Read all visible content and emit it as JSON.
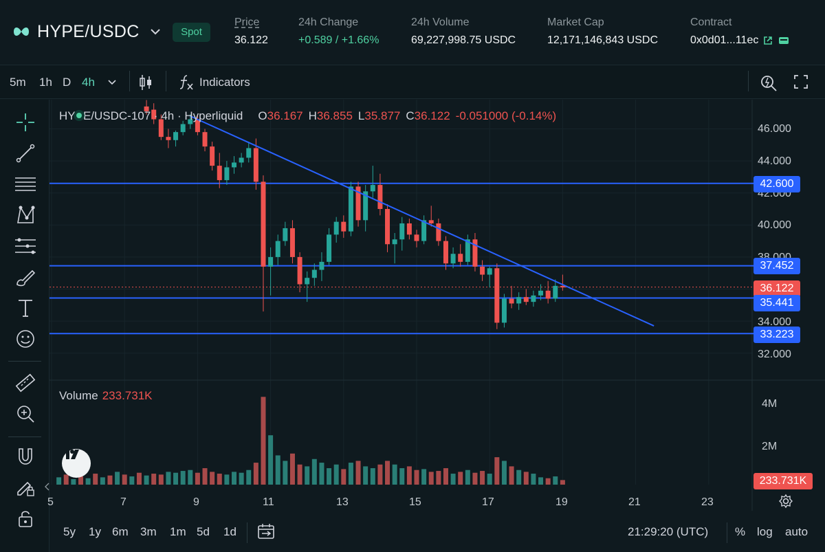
{
  "header": {
    "pair": "HYPE/USDC",
    "market_type": "Spot",
    "stats": [
      {
        "key": "price",
        "label": "Price",
        "value": "36.122"
      },
      {
        "key": "change",
        "label": "24h Change",
        "value": "+0.589 / +1.66%"
      },
      {
        "key": "volume",
        "label": "24h Volume",
        "value": "69,227,998.75 USDC"
      },
      {
        "key": "mcap",
        "label": "Market Cap",
        "value": "12,171,146,843 USDC"
      },
      {
        "key": "contract",
        "label": "Contract",
        "value": "0x0d01...11ec"
      }
    ],
    "accent": "#4fd1a1"
  },
  "toolbar": {
    "timeframes": [
      "5m",
      "1h",
      "D",
      "4h"
    ],
    "active_timeframe": "4h",
    "indicators_label": "Indicators"
  },
  "sidebar_tools": [
    "crosshair-icon",
    "trend-line-icon",
    "horizontal-lines-icon",
    "pattern-icon",
    "fib-icon",
    "brush-icon",
    "text-icon",
    "emoji-icon",
    "ruler-icon",
    "zoom-in-icon",
    "magnet-icon",
    "lock-pen-icon",
    "lock-icon"
  ],
  "legend": {
    "title": "HYPE/USDC-107 · 4h · Hyperliquid",
    "o_label": "O",
    "o": "36.167",
    "h_label": "H",
    "h": "36.855",
    "l_label": "L",
    "l": "35.877",
    "c_label": "C",
    "c": "36.122",
    "change": "-0.051000 (-0.14%)"
  },
  "volume_legend": {
    "label": "Volume",
    "value": "233.731K"
  },
  "y_axis": {
    "ticks": [
      "46.000",
      "44.000",
      "42.000",
      "40.000",
      "38.000",
      "34.000",
      "32.000"
    ],
    "volume_ticks": [
      "4M",
      "2M"
    ]
  },
  "price_tags": {
    "level_1": "42.600",
    "level_2": "37.452",
    "last": "36.122",
    "level_3": "35.441",
    "level_4": "33.223",
    "volume": "233.731K"
  },
  "x_axis": {
    "ticks": [
      "5",
      "7",
      "9",
      "11",
      "13",
      "15",
      "17",
      "19",
      "21",
      "23"
    ]
  },
  "bottom_bar": {
    "ranges": [
      "5y",
      "1y",
      "6m",
      "3m",
      "1m",
      "5d",
      "1d"
    ],
    "clock": "21:29:20 (UTC)",
    "percent": "%",
    "log": "log",
    "auto": "auto"
  },
  "colors": {
    "up": "#26a69a",
    "down": "#ef5350",
    "level": "#2962ff",
    "bg": "#0f1a1f"
  },
  "chart_data": {
    "type": "candlestick",
    "y_range": [
      31.3,
      47.2
    ],
    "horizontal_levels": [
      42.6,
      37.452,
      35.441,
      33.223
    ],
    "last_price": 36.122,
    "trendline": [
      {
        "x": 8.8,
        "y": 46.8
      },
      {
        "x": 21.5,
        "y": 33.7
      }
    ],
    "candles": [
      {
        "x": 7.6,
        "o": 47.4,
        "h": 47.8,
        "l": 46.9,
        "c": 47.1
      },
      {
        "x": 7.8,
        "o": 47.2,
        "h": 47.6,
        "l": 46.3,
        "c": 46.6
      },
      {
        "x": 8.0,
        "o": 46.6,
        "h": 46.9,
        "l": 45.3,
        "c": 45.5
      },
      {
        "x": 8.2,
        "o": 45.5,
        "h": 46.0,
        "l": 44.8,
        "c": 45.3
      },
      {
        "x": 8.4,
        "o": 45.3,
        "h": 45.9,
        "l": 44.9,
        "c": 45.8
      },
      {
        "x": 8.6,
        "o": 45.8,
        "h": 46.5,
        "l": 45.6,
        "c": 46.3
      },
      {
        "x": 8.8,
        "o": 46.3,
        "h": 46.9,
        "l": 46.0,
        "c": 46.6
      },
      {
        "x": 9.0,
        "o": 46.6,
        "h": 46.9,
        "l": 45.6,
        "c": 45.8
      },
      {
        "x": 9.2,
        "o": 45.8,
        "h": 46.0,
        "l": 44.6,
        "c": 44.9
      },
      {
        "x": 9.4,
        "o": 44.9,
        "h": 45.2,
        "l": 43.4,
        "c": 43.7
      },
      {
        "x": 9.6,
        "o": 43.7,
        "h": 44.5,
        "l": 42.3,
        "c": 42.8
      },
      {
        "x": 9.8,
        "o": 42.8,
        "h": 44.0,
        "l": 42.5,
        "c": 43.6
      },
      {
        "x": 10.0,
        "o": 43.6,
        "h": 44.3,
        "l": 43.2,
        "c": 43.9
      },
      {
        "x": 10.2,
        "o": 43.9,
        "h": 44.5,
        "l": 43.6,
        "c": 44.2
      },
      {
        "x": 10.4,
        "o": 44.2,
        "h": 45.2,
        "l": 43.9,
        "c": 44.8
      },
      {
        "x": 10.6,
        "o": 44.8,
        "h": 45.4,
        "l": 42.2,
        "c": 42.7
      },
      {
        "x": 10.8,
        "o": 42.7,
        "h": 43.1,
        "l": 34.6,
        "c": 37.4
      },
      {
        "x": 11.0,
        "o": 37.4,
        "h": 38.6,
        "l": 35.6,
        "c": 38.0
      },
      {
        "x": 11.2,
        "o": 38.0,
        "h": 39.4,
        "l": 37.5,
        "c": 39.0
      },
      {
        "x": 11.4,
        "o": 39.0,
        "h": 40.2,
        "l": 38.7,
        "c": 39.8
      },
      {
        "x": 11.6,
        "o": 39.8,
        "h": 40.3,
        "l": 37.6,
        "c": 38.0
      },
      {
        "x": 11.8,
        "o": 38.0,
        "h": 38.3,
        "l": 35.8,
        "c": 36.3
      },
      {
        "x": 12.0,
        "o": 36.3,
        "h": 37.1,
        "l": 35.2,
        "c": 36.7
      },
      {
        "x": 12.2,
        "o": 36.7,
        "h": 37.6,
        "l": 36.2,
        "c": 37.2
      },
      {
        "x": 12.4,
        "o": 37.2,
        "h": 38.3,
        "l": 36.5,
        "c": 37.7
      },
      {
        "x": 12.6,
        "o": 37.7,
        "h": 39.8,
        "l": 37.5,
        "c": 39.4
      },
      {
        "x": 12.8,
        "o": 39.4,
        "h": 40.5,
        "l": 38.9,
        "c": 40.2
      },
      {
        "x": 13.0,
        "o": 40.2,
        "h": 40.6,
        "l": 39.2,
        "c": 39.6
      },
      {
        "x": 13.2,
        "o": 39.6,
        "h": 42.7,
        "l": 39.3,
        "c": 42.4
      },
      {
        "x": 13.4,
        "o": 42.4,
        "h": 42.7,
        "l": 39.9,
        "c": 40.3
      },
      {
        "x": 13.6,
        "o": 40.3,
        "h": 42.5,
        "l": 39.6,
        "c": 42.1
      },
      {
        "x": 13.8,
        "o": 42.1,
        "h": 43.7,
        "l": 41.7,
        "c": 42.5
      },
      {
        "x": 14.0,
        "o": 42.5,
        "h": 43.2,
        "l": 40.6,
        "c": 41.0
      },
      {
        "x": 14.2,
        "o": 41.0,
        "h": 41.3,
        "l": 38.3,
        "c": 38.8
      },
      {
        "x": 14.4,
        "o": 38.8,
        "h": 39.5,
        "l": 37.6,
        "c": 39.1
      },
      {
        "x": 14.6,
        "o": 39.1,
        "h": 40.5,
        "l": 38.4,
        "c": 40.1
      },
      {
        "x": 14.8,
        "o": 40.1,
        "h": 40.4,
        "l": 39.1,
        "c": 39.4
      },
      {
        "x": 15.0,
        "o": 39.4,
        "h": 39.7,
        "l": 38.6,
        "c": 39.0
      },
      {
        "x": 15.2,
        "o": 39.0,
        "h": 40.6,
        "l": 38.8,
        "c": 40.3
      },
      {
        "x": 15.4,
        "o": 40.3,
        "h": 41.2,
        "l": 39.9,
        "c": 40.1
      },
      {
        "x": 15.6,
        "o": 40.1,
        "h": 40.4,
        "l": 38.7,
        "c": 39.0
      },
      {
        "x": 15.8,
        "o": 39.0,
        "h": 39.3,
        "l": 37.2,
        "c": 37.6
      },
      {
        "x": 16.0,
        "o": 37.6,
        "h": 38.6,
        "l": 37.3,
        "c": 38.2
      },
      {
        "x": 16.2,
        "o": 38.2,
        "h": 38.8,
        "l": 37.4,
        "c": 37.7
      },
      {
        "x": 16.4,
        "o": 37.7,
        "h": 39.4,
        "l": 37.5,
        "c": 39.1
      },
      {
        "x": 16.6,
        "o": 39.1,
        "h": 39.5,
        "l": 37.1,
        "c": 37.4
      },
      {
        "x": 16.8,
        "o": 37.4,
        "h": 37.8,
        "l": 36.5,
        "c": 36.9
      },
      {
        "x": 17.0,
        "o": 36.9,
        "h": 37.4,
        "l": 36.1,
        "c": 37.3
      },
      {
        "x": 17.2,
        "o": 37.3,
        "h": 37.6,
        "l": 33.5,
        "c": 33.9
      },
      {
        "x": 17.4,
        "o": 33.9,
        "h": 35.7,
        "l": 33.6,
        "c": 35.4
      },
      {
        "x": 17.6,
        "o": 35.4,
        "h": 36.2,
        "l": 34.8,
        "c": 35.1
      },
      {
        "x": 17.8,
        "o": 35.1,
        "h": 35.8,
        "l": 34.7,
        "c": 35.5
      },
      {
        "x": 18.0,
        "o": 35.5,
        "h": 36.0,
        "l": 35.0,
        "c": 35.2
      },
      {
        "x": 18.2,
        "o": 35.2,
        "h": 35.9,
        "l": 34.9,
        "c": 35.6
      },
      {
        "x": 18.4,
        "o": 35.6,
        "h": 36.3,
        "l": 35.3,
        "c": 35.9
      },
      {
        "x": 18.6,
        "o": 35.9,
        "h": 36.5,
        "l": 35.1,
        "c": 35.4
      },
      {
        "x": 18.8,
        "o": 35.4,
        "h": 36.6,
        "l": 35.2,
        "c": 36.2
      },
      {
        "x": 19.0,
        "o": 36.2,
        "h": 36.9,
        "l": 35.9,
        "c": 36.1
      }
    ],
    "volume": {
      "y_range": [
        0,
        5000000
      ],
      "x": [
        5.2,
        5.4,
        5.6,
        5.8,
        6.0,
        6.2,
        6.4,
        6.6,
        6.8,
        7.0,
        7.2,
        7.4,
        7.6,
        7.8,
        8.0,
        8.2,
        8.4,
        8.6,
        8.8,
        9.0,
        9.2,
        9.4,
        9.6,
        9.8,
        10.0,
        10.2,
        10.4,
        10.6,
        10.8,
        11.0,
        11.2,
        11.4,
        11.6,
        11.8,
        12.0,
        12.2,
        12.4,
        12.6,
        12.8,
        13.0,
        13.2,
        13.4,
        13.6,
        13.8,
        14.0,
        14.2,
        14.4,
        14.6,
        14.8,
        15.0,
        15.2,
        15.4,
        15.6,
        15.8,
        16.0,
        16.2,
        16.4,
        16.6,
        16.8,
        17.0,
        17.2,
        17.4,
        17.6,
        17.8,
        18.0,
        18.2,
        18.4,
        18.6,
        18.8,
        19.0
      ],
      "values": [
        400000,
        550000,
        300000,
        450000,
        350000,
        600000,
        400000,
        500000,
        700000,
        550000,
        450000,
        650000,
        500000,
        600000,
        550000,
        700000,
        650000,
        750000,
        800000,
        650000,
        900000,
        700000,
        600000,
        550000,
        700000,
        650000,
        800000,
        1200000,
        4800000,
        2700000,
        1600000,
        1300000,
        1700000,
        1100000,
        1000000,
        1400000,
        1200000,
        900000,
        1100000,
        850000,
        1200000,
        1300000,
        1000000,
        900000,
        1100000,
        1300000,
        1100000,
        900000,
        1000000,
        800000,
        850000,
        700000,
        750000,
        900000,
        600000,
        700000,
        800000,
        650000,
        750000,
        600000,
        1500000,
        1300000,
        1000000,
        800000,
        700000,
        600000,
        400000,
        350000,
        450000,
        250000
      ],
      "up": [
        true,
        false,
        true,
        false,
        true,
        false,
        true,
        false,
        true,
        false,
        true,
        false,
        true,
        false,
        false,
        true,
        true,
        true,
        true,
        false,
        false,
        false,
        false,
        true,
        true,
        true,
        true,
        false,
        false,
        true,
        true,
        true,
        false,
        false,
        true,
        true,
        true,
        true,
        true,
        false,
        true,
        false,
        true,
        true,
        false,
        false,
        true,
        true,
        false,
        false,
        true,
        false,
        false,
        false,
        true,
        false,
        true,
        false,
        false,
        true,
        false,
        true,
        false,
        true,
        false,
        true,
        true,
        false,
        true,
        false
      ]
    }
  }
}
